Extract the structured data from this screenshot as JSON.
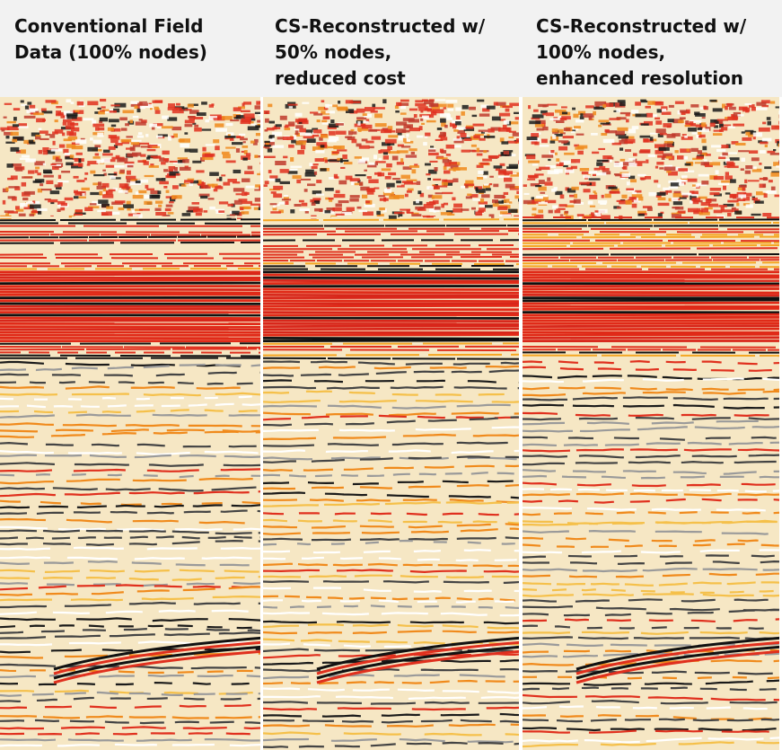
{
  "panels": [
    {
      "title": [
        "Conventional Field",
        "Data (100% nodes)"
      ]
    },
    {
      "title": [
        "CS-Reconstructed w/",
        "50% nodes,",
        "reduced cost"
      ]
    },
    {
      "title": [
        "CS-Reconstructed w/",
        "100% nodes,",
        "enhanced resolution"
      ]
    }
  ]
}
